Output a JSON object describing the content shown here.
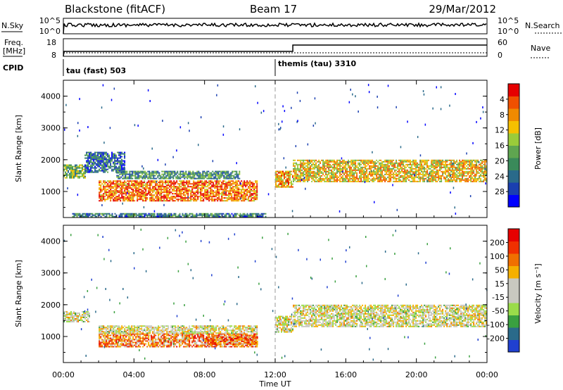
{
  "header": {
    "station": "Blackstone (fitACF)",
    "beam": "Beam 17",
    "date": "29/Mar/2012"
  },
  "side_labels": {
    "nsky": "N.Sky",
    "nsearch": "N.Search",
    "freq_line1": "Freq.",
    "freq_line2": "[MHz]",
    "nave": "Nave",
    "cpid": "CPID"
  },
  "noise_panel": {
    "left_ticks": [
      "10^5",
      "10^0"
    ],
    "right_ticks": [
      "10^5",
      "10^0"
    ]
  },
  "freq_panel": {
    "left_ticks": [
      "18",
      "8"
    ],
    "right_ticks": [
      "60",
      "0"
    ]
  },
  "cpid_panel": {
    "labels": [
      {
        "text": "tau (fast) 503",
        "start_hour": 0
      },
      {
        "text": "themis (tau) 3310",
        "start_hour": 12
      }
    ]
  },
  "time_axis": {
    "xlabel": "Time UT",
    "ticks": [
      "00:00",
      "04:00",
      "08:00",
      "12:00",
      "16:00",
      "20:00",
      "00:00"
    ]
  },
  "chart_data": [
    {
      "type": "heatmap",
      "name": "power",
      "ylabel": "Slant Range [km]",
      "x_range_hours": [
        0,
        24
      ],
      "ylim": [
        180,
        4500
      ],
      "y_ticks": [
        "1000",
        "2000",
        "3000",
        "4000"
      ],
      "colorbar": {
        "label": "Power [dB]",
        "ticks": [
          "4",
          "8",
          "12",
          "16",
          "20",
          "24",
          "28"
        ],
        "colors": [
          "#0000ff",
          "#1a3fb0",
          "#2a6a8a",
          "#3a8a5a",
          "#5fa550",
          "#9acb3a",
          "#f5c000",
          "#f08a00",
          "#f05000",
          "#e60000"
        ]
      },
      "bands": [
        {
          "t": [
            0.0,
            1.2
          ],
          "r": [
            1450,
            1850
          ],
          "level": 0.45
        },
        {
          "t": [
            1.2,
            3.5
          ],
          "r": [
            1600,
            2250
          ],
          "level": 0.25
        },
        {
          "t": [
            2.0,
            11.0
          ],
          "r": [
            700,
            1350
          ],
          "level": 0.8
        },
        {
          "t": [
            3.0,
            10.0
          ],
          "r": [
            1400,
            1650
          ],
          "level": 0.35
        },
        {
          "t": [
            12.0,
            13.0
          ],
          "r": [
            1150,
            1650
          ],
          "level": 0.7
        },
        {
          "t": [
            13.0,
            24.0
          ],
          "r": [
            1300,
            2000
          ],
          "level": 0.65
        },
        {
          "t": [
            0.5,
            11.5
          ],
          "r": [
            200,
            320
          ],
          "level": 0.3
        }
      ]
    },
    {
      "type": "heatmap",
      "name": "velocity",
      "ylabel": "Slant Range [km]",
      "x_range_hours": [
        0,
        24
      ],
      "ylim": [
        180,
        4500
      ],
      "y_ticks": [
        "1000",
        "2000",
        "3000",
        "4000"
      ],
      "colorbar": {
        "label": "Velocity [m s⁻¹]",
        "ticks": [
          "200",
          "100",
          "50",
          "15",
          "-15",
          "-50",
          "-100",
          "-200"
        ],
        "colors": [
          "#2040d0",
          "#2a6a8a",
          "#3aa040",
          "#9adc4a",
          "#c8c8c0",
          "#c8c8c0",
          "#f5b000",
          "#f07000",
          "#f03000",
          "#e60000"
        ]
      },
      "bands": [
        {
          "t": [
            0.0,
            1.5
          ],
          "r": [
            1450,
            1800
          ],
          "level": 0.5
        },
        {
          "t": [
            2.0,
            11.0
          ],
          "r": [
            700,
            1100
          ],
          "level": 0.72
        },
        {
          "t": [
            2.0,
            11.0
          ],
          "r": [
            1100,
            1350
          ],
          "level": 0.5
        },
        {
          "t": [
            12.0,
            13.0
          ],
          "r": [
            1150,
            1650
          ],
          "level": 0.5
        },
        {
          "t": [
            13.0,
            24.0
          ],
          "r": [
            1300,
            2000
          ],
          "level": 0.5
        },
        {
          "t": [
            8.0,
            11.0
          ],
          "r": [
            750,
            1000
          ],
          "level": 0.75
        }
      ]
    }
  ]
}
